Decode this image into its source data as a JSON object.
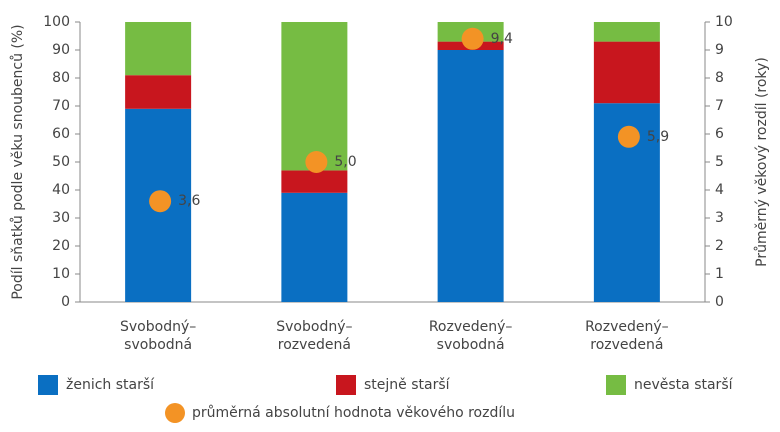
{
  "chart_data": {
    "type": "bar",
    "stacked": true,
    "categories": [
      "Svobodný–\nsvobodná",
      "Svobodný–\nrozvedená",
      "Rozvedený–\nsvobodná",
      "Rozvedený–\nrozvedená"
    ],
    "series": [
      {
        "name": "ženich starší",
        "color": "#0a6fc2",
        "values": [
          69,
          39,
          90,
          71
        ]
      },
      {
        "name": "stejně starší",
        "color": "#c8161e",
        "values": [
          12,
          8,
          3,
          22
        ]
      },
      {
        "name": "nevěsta starší",
        "color": "#76bc43",
        "values": [
          19,
          53,
          7,
          7
        ]
      },
      {
        "name": "průměrná absolutní hodnota věkového rozdílu",
        "color": "#f39325",
        "type": "scatter",
        "axis": "y2",
        "values": [
          3.6,
          5.0,
          9.4,
          5.9
        ],
        "value_labels": [
          "3,6",
          "5,0",
          "9,4",
          "5,9"
        ]
      }
    ],
    "ylabel": "Podíl sňatků podle věku snoubenců (%)",
    "y2label": "Průměrný věkový rozdíl (roky)",
    "ylim": [
      0,
      100
    ],
    "yticks": [
      0,
      10,
      20,
      30,
      40,
      50,
      60,
      70,
      80,
      90,
      100
    ],
    "y2lim": [
      0,
      10
    ],
    "y2ticks": [
      0,
      1,
      2,
      3,
      4,
      5,
      6,
      7,
      8,
      9,
      10
    ],
    "grid": false
  }
}
